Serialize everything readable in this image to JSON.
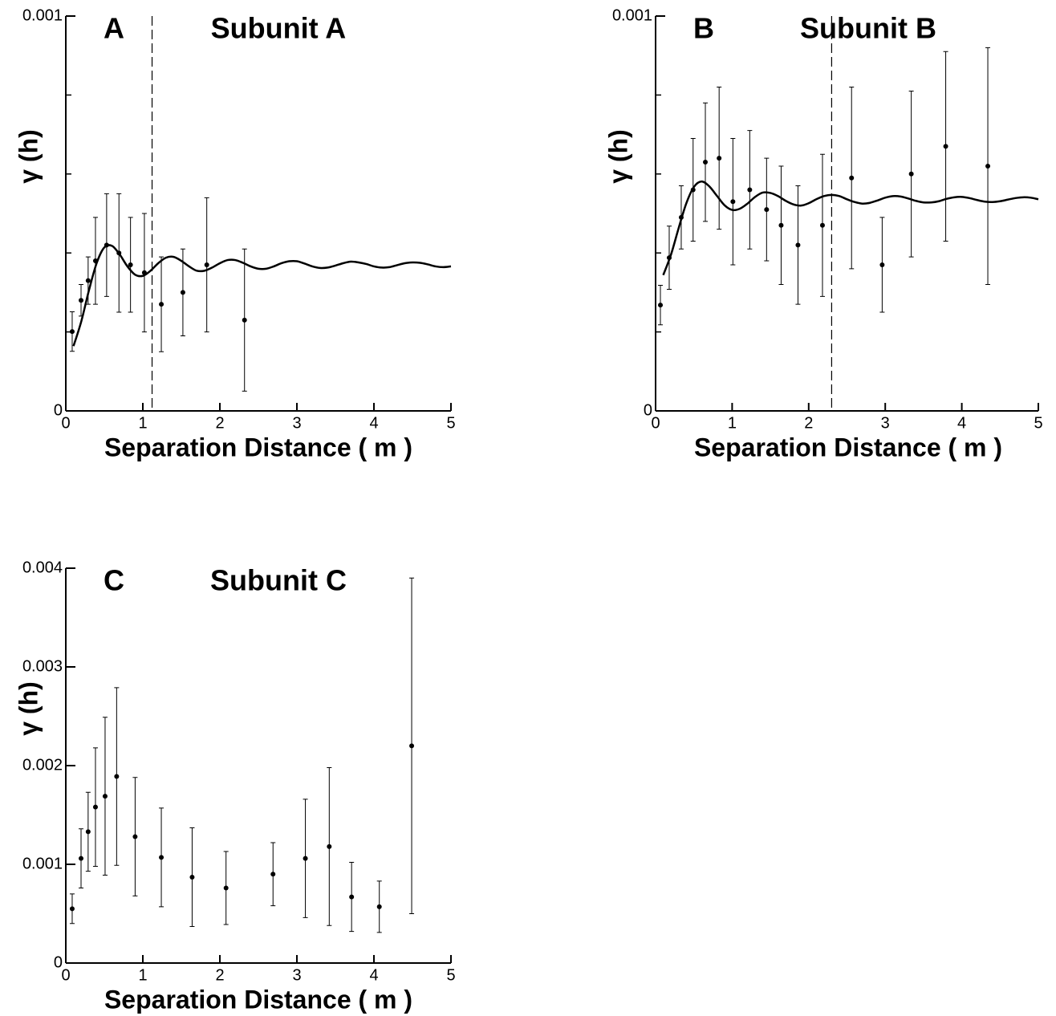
{
  "chart_data": [
    {
      "type": "scatter",
      "panel_label": "A",
      "title": "Subunit A",
      "x_label": "Separation Distance ( m )",
      "y_label": "γ (h)",
      "color": "#000000",
      "xlim": [
        0,
        5
      ],
      "xticks": [
        0,
        1,
        2,
        3,
        4,
        5
      ],
      "ylim": [
        0,
        0.001
      ],
      "yticks": [
        0,
        0.001
      ],
      "yminorticks": [
        0.0002,
        0.0004,
        0.0006,
        0.0008
      ],
      "vline": 1.12,
      "x": [
        0.083,
        0.198,
        0.29,
        0.385,
        0.53,
        0.69,
        0.84,
        1.02,
        1.24,
        1.52,
        1.83,
        2.32
      ],
      "values": [
        0.000201,
        0.00028,
        0.00033,
        0.00038,
        0.00042,
        0.0004,
        0.00037,
        0.00035,
        0.00027,
        0.0003,
        0.00037,
        0.00023
      ],
      "errors": [
        5e-05,
        4e-05,
        6e-05,
        0.00011,
        0.00013,
        0.00015,
        0.00012,
        0.00015,
        0.00012,
        0.00011,
        0.00017,
        0.00018
      ],
      "curve": {
        "x": [
          0.1,
          0.2,
          0.3,
          0.4,
          0.5,
          0.6,
          0.7,
          0.8,
          0.9,
          1.0,
          1.1,
          1.2,
          1.3,
          1.4,
          1.5,
          1.6,
          1.7,
          1.8,
          1.9,
          2.0,
          2.1,
          2.2,
          2.3,
          2.4,
          2.5,
          2.6,
          2.7,
          2.8,
          2.9,
          3.0,
          3.1,
          3.2,
          3.3,
          3.4,
          3.5,
          3.6,
          3.7,
          3.8,
          3.9,
          4.0,
          4.1,
          4.2,
          4.3,
          4.4,
          4.5,
          4.6,
          4.7,
          4.8,
          4.9,
          5.0
        ],
        "values": [
          0.000164,
          0.000226,
          0.000305,
          0.000374,
          0.000414,
          0.000418,
          0.000396,
          0.000366,
          0.000345,
          0.000342,
          0.000355,
          0.000374,
          0.000388,
          0.00039,
          0.00038,
          0.000366,
          0.000355,
          0.000355,
          0.000363,
          0.000374,
          0.000382,
          0.000382,
          0.000375,
          0.000366,
          0.00036,
          0.00036,
          0.000366,
          0.000374,
          0.000379,
          0.000379,
          0.000373,
          0.000366,
          0.000362,
          0.000363,
          0.000368,
          0.000374,
          0.000378,
          0.000376,
          0.000372,
          0.000366,
          0.000363,
          0.000364,
          0.000369,
          0.000374,
          0.000376,
          0.000375,
          0.000371,
          0.000366,
          0.000364,
          0.000366
        ]
      }
    },
    {
      "type": "scatter",
      "panel_label": "B",
      "title": "Subunit B",
      "x_label": "Separation Distance ( m )",
      "y_label": "γ (h)",
      "color": "#000000",
      "xlim": [
        0,
        5
      ],
      "xticks": [
        0,
        1,
        2,
        3,
        4,
        5
      ],
      "ylim": [
        0,
        0.001
      ],
      "yticks": [
        0,
        0.001
      ],
      "yminorticks": [
        0.0002,
        0.0004,
        0.0006,
        0.0008
      ],
      "vline": 2.3,
      "x": [
        0.063,
        0.178,
        0.335,
        0.49,
        0.65,
        0.83,
        1.01,
        1.23,
        1.45,
        1.64,
        1.86,
        2.18,
        2.56,
        2.96,
        3.34,
        3.79,
        4.34
      ],
      "values": [
        0.000268,
        0.000388,
        0.00049,
        0.00056,
        0.00063,
        0.00064,
        0.00053,
        0.00056,
        0.00051,
        0.00047,
        0.00042,
        0.00047,
        0.00059,
        0.00037,
        0.0006,
        0.00067,
        0.00062
      ],
      "errors": [
        5e-05,
        8e-05,
        8e-05,
        0.00013,
        0.00015,
        0.00018,
        0.00016,
        0.00015,
        0.00013,
        0.00015,
        0.00015,
        0.00018,
        0.00023,
        0.00012,
        0.00021,
        0.00024,
        0.0003
      ],
      "curve": {
        "x": [
          0.1,
          0.2,
          0.3,
          0.4,
          0.5,
          0.6,
          0.7,
          0.8,
          0.9,
          1.0,
          1.1,
          1.2,
          1.3,
          1.4,
          1.5,
          1.6,
          1.7,
          1.8,
          1.9,
          2.0,
          2.1,
          2.2,
          2.3,
          2.4,
          2.5,
          2.6,
          2.7,
          2.8,
          2.9,
          3.0,
          3.1,
          3.2,
          3.3,
          3.4,
          3.5,
          3.6,
          3.7,
          3.8,
          3.9,
          4.0,
          4.1,
          4.2,
          4.3,
          4.4,
          4.5,
          4.6,
          4.7,
          4.8,
          4.9,
          5.0
        ],
        "values": [
          0.000344,
          0.000395,
          0.000462,
          0.000525,
          0.000567,
          0.000581,
          0.000569,
          0.000545,
          0.000521,
          0.000509,
          0.000512,
          0.000525,
          0.000542,
          0.000553,
          0.000552,
          0.000544,
          0.000532,
          0.000523,
          0.00052,
          0.000526,
          0.000536,
          0.000544,
          0.000547,
          0.000544,
          0.000536,
          0.000529,
          0.000525,
          0.000527,
          0.000533,
          0.00054,
          0.000544,
          0.000543,
          0.000538,
          0.000532,
          0.000528,
          0.000528,
          0.000531,
          0.000537,
          0.000541,
          0.000542,
          0.000539,
          0.000534,
          0.00053,
          0.000529,
          0.000531,
          0.000535,
          0.000539,
          0.000541,
          0.00054,
          0.000536
        ]
      }
    },
    {
      "type": "scatter",
      "panel_label": "C",
      "title": "Subunit C",
      "x_label": "Separation Distance ( m )",
      "y_label": "γ (h)",
      "color": "#000000",
      "xlim": [
        0,
        5
      ],
      "xticks": [
        0,
        1,
        2,
        3,
        4,
        5
      ],
      "ylim": [
        0,
        0.004
      ],
      "yticks": [
        0,
        0.001,
        0.002,
        0.003,
        0.004
      ],
      "x": [
        0.083,
        0.198,
        0.29,
        0.385,
        0.51,
        0.66,
        0.9,
        1.24,
        1.64,
        2.08,
        2.69,
        3.11,
        3.42,
        3.71,
        4.07,
        4.49
      ],
      "values": [
        0.00055,
        0.00106,
        0.00133,
        0.00158,
        0.00169,
        0.00189,
        0.00128,
        0.00107,
        0.00087,
        0.00076,
        0.0009,
        0.00106,
        0.00118,
        0.00067,
        0.00057,
        0.0022
      ],
      "errors": [
        0.00015,
        0.0003,
        0.0004,
        0.0006,
        0.0008,
        0.0009,
        0.0006,
        0.0005,
        0.0005,
        0.00037,
        0.00032,
        0.0006,
        0.0008,
        0.00035,
        0.00026,
        0.0017
      ]
    }
  ]
}
